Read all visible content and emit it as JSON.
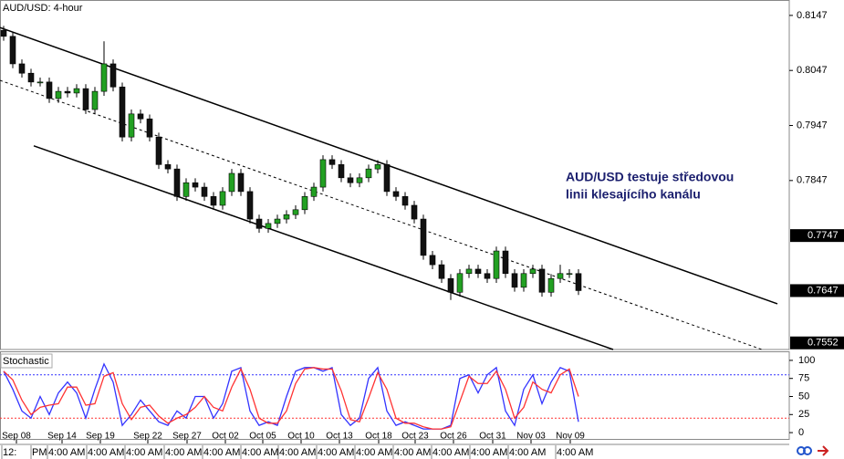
{
  "chart_data": [
    {
      "type": "candlestick",
      "title": "AUD/USD: 4-hour",
      "xlim": [
        -0.4,
        86.1
      ],
      "ylim": [
        0.754,
        0.8175
      ],
      "yticks": [
        0.8147,
        0.8047,
        0.7947,
        0.7847
      ],
      "price_markers": [
        0.7747,
        0.7647,
        0.7552
      ],
      "up_color": "#22a022",
      "down_color": "#111111",
      "candles": {
        "open": [
          0.812,
          0.8109,
          0.8059,
          0.8042,
          0.8026,
          0.8026,
          0.7996,
          0.8009,
          0.8006,
          0.8014,
          0.7976,
          0.8009,
          0.8059,
          0.8017,
          0.7926,
          0.7968,
          0.7959,
          0.7926,
          0.7876,
          0.7868,
          0.7818,
          0.7843,
          0.7835,
          0.7818,
          0.7802,
          0.7827,
          0.786,
          0.7827,
          0.7777,
          0.776,
          0.7769,
          0.7777,
          0.7785,
          0.7794,
          0.7818,
          0.7835,
          0.7885,
          0.7876,
          0.7852,
          0.7843,
          0.7852,
          0.7868,
          0.7876,
          0.7827,
          0.7818,
          0.7802,
          0.7777,
          0.7711,
          0.7694,
          0.7669,
          0.7644,
          0.7678,
          0.7686,
          0.7678,
          0.7669,
          0.7719,
          0.7678,
          0.7653,
          0.7678,
          0.7686,
          0.7644,
          0.7669,
          0.7678,
          0.7678
        ],
        "high": [
          0.8128,
          0.8117,
          0.8067,
          0.805,
          0.8034,
          0.8034,
          0.8017,
          0.8017,
          0.8022,
          0.8022,
          0.8017,
          0.81,
          0.8067,
          0.8025,
          0.7976,
          0.7976,
          0.7967,
          0.7934,
          0.7884,
          0.7876,
          0.7851,
          0.7851,
          0.7843,
          0.7826,
          0.7835,
          0.7868,
          0.7868,
          0.7835,
          0.7785,
          0.7777,
          0.7785,
          0.7793,
          0.7802,
          0.7826,
          0.7843,
          0.7893,
          0.7893,
          0.7884,
          0.786,
          0.786,
          0.7876,
          0.7884,
          0.7884,
          0.7835,
          0.7826,
          0.781,
          0.7785,
          0.7719,
          0.7702,
          0.7677,
          0.7686,
          0.7694,
          0.7694,
          0.7686,
          0.7727,
          0.7727,
          0.7686,
          0.7686,
          0.7694,
          0.7694,
          0.7677,
          0.7694,
          0.7686,
          0.7686
        ],
        "low": [
          0.8101,
          0.8051,
          0.8034,
          0.8018,
          0.8018,
          0.7988,
          0.7988,
          0.7998,
          0.7998,
          0.7968,
          0.7968,
          0.8001,
          0.8009,
          0.7918,
          0.7918,
          0.7951,
          0.7918,
          0.7868,
          0.786,
          0.781,
          0.781,
          0.7827,
          0.781,
          0.7794,
          0.7794,
          0.7819,
          0.7819,
          0.7769,
          0.7752,
          0.7752,
          0.7761,
          0.7769,
          0.7777,
          0.7786,
          0.781,
          0.7827,
          0.7868,
          0.7844,
          0.7835,
          0.7835,
          0.7844,
          0.786,
          0.7819,
          0.781,
          0.7794,
          0.7769,
          0.7703,
          0.7686,
          0.7661,
          0.763,
          0.7636,
          0.767,
          0.767,
          0.7661,
          0.7661,
          0.767,
          0.7645,
          0.7645,
          0.767,
          0.7636,
          0.7636,
          0.7661,
          0.767,
          0.7639
        ],
        "close": [
          0.8109,
          0.8059,
          0.8042,
          0.8026,
          0.8026,
          0.7996,
          0.8009,
          0.8006,
          0.8014,
          0.7976,
          0.8009,
          0.8059,
          0.8017,
          0.7926,
          0.7968,
          0.7959,
          0.7926,
          0.7876,
          0.7868,
          0.7818,
          0.7843,
          0.7835,
          0.7818,
          0.7802,
          0.7827,
          0.786,
          0.7827,
          0.7777,
          0.776,
          0.7769,
          0.7777,
          0.7785,
          0.7794,
          0.7818,
          0.7835,
          0.7885,
          0.7876,
          0.7852,
          0.7843,
          0.7852,
          0.7868,
          0.7876,
          0.7827,
          0.7818,
          0.7802,
          0.7777,
          0.7711,
          0.7694,
          0.7669,
          0.7644,
          0.7678,
          0.7686,
          0.7678,
          0.7669,
          0.7719,
          0.7678,
          0.7653,
          0.7678,
          0.7686,
          0.7644,
          0.7669,
          0.7678,
          0.7678,
          0.7647
        ]
      },
      "trend_lines": [
        {
          "x": [
            -0.4,
            84.8
          ],
          "y": [
            0.8125,
            0.7623
          ],
          "style": "solid"
        },
        {
          "x": [
            3.3,
            66.8
          ],
          "y": [
            0.791,
            0.754
          ],
          "style": "solid"
        },
        {
          "x": [
            -0.4,
            83.1
          ],
          "y": [
            0.8029,
            0.754
          ],
          "style": "dashed"
        }
      ],
      "annotation": [
        "AUD/USD testuje středovou",
        "linii klesajícího kanálu"
      ]
    },
    {
      "type": "line",
      "title": "Stochastic",
      "xlim": [
        -0.4,
        86.1
      ],
      "ylim": [
        -10,
        110
      ],
      "yticks": [
        100,
        75,
        50,
        25,
        0
      ],
      "levels": [
        {
          "value": 80,
          "color": "#3030ff"
        },
        {
          "value": 20,
          "color": "#ff3030"
        }
      ],
      "series": [
        {
          "color": "#3333ff",
          "values": [
            85,
            60,
            30,
            20,
            50,
            25,
            55,
            70,
            55,
            20,
            60,
            95,
            70,
            10,
            25,
            45,
            30,
            15,
            10,
            30,
            20,
            50,
            50,
            20,
            40,
            85,
            90,
            30,
            10,
            15,
            10,
            50,
            85,
            90,
            90,
            85,
            90,
            25,
            10,
            20,
            75,
            90,
            30,
            10,
            15,
            10,
            5,
            5,
            5,
            10,
            75,
            80,
            55,
            80,
            90,
            30,
            10,
            60,
            80,
            40,
            70,
            90,
            85,
            15
          ]
        },
        {
          "color": "#ff3333",
          "values": [
            85,
            73,
            45,
            25,
            35,
            38,
            40,
            63,
            63,
            38,
            40,
            78,
            83,
            40,
            18,
            35,
            38,
            23,
            13,
            20,
            25,
            35,
            50,
            35,
            30,
            63,
            88,
            60,
            20,
            13,
            13,
            30,
            68,
            88,
            90,
            88,
            88,
            58,
            18,
            15,
            48,
            83,
            60,
            20,
            13,
            13,
            8,
            5,
            5,
            8,
            43,
            78,
            68,
            68,
            85,
            60,
            20,
            35,
            70,
            60,
            55,
            80,
            88,
            50
          ]
        }
      ],
      "xticks": [
        {
          "value": 1.4,
          "label": "Sep 08"
        },
        {
          "value": 6.4,
          "label": "Sep 14"
        },
        {
          "value": 10.6,
          "label": "Sep 19"
        },
        {
          "value": 15.8,
          "label": "Sep 22"
        },
        {
          "value": 20.1,
          "label": "Sep 27"
        },
        {
          "value": 24.3,
          "label": "Oct 02"
        },
        {
          "value": 28.4,
          "label": "Oct 05"
        },
        {
          "value": 32.6,
          "label": "Oct 10"
        },
        {
          "value": 36.8,
          "label": "Oct 13"
        },
        {
          "value": 41.1,
          "label": "Oct 18"
        },
        {
          "value": 45.1,
          "label": "Oct 23"
        },
        {
          "value": 49.3,
          "label": "Oct 26"
        },
        {
          "value": 53.6,
          "label": "Oct 31"
        },
        {
          "value": 57.8,
          "label": "Nov 03"
        },
        {
          "value": 62.1,
          "label": "Nov 09"
        }
      ],
      "time_ticks": [
        {
          "value": -0.2,
          "label": "12:"
        },
        {
          "value": 3.0,
          "label": "PM"
        },
        {
          "value": 4.8,
          "label": "4:00 AM"
        },
        {
          "value": 9.1,
          "label": "4:00 AM"
        },
        {
          "value": 13.3,
          "label": "4:00 AM"
        },
        {
          "value": 17.6,
          "label": "4:00 AM"
        },
        {
          "value": 21.8,
          "label": "4:00 AM"
        },
        {
          "value": 26.0,
          "label": "4:00 AM"
        },
        {
          "value": 30.1,
          "label": "4:00 AM"
        },
        {
          "value": 34.3,
          "label": "4:00 AM"
        },
        {
          "value": 38.5,
          "label": "4:00 AM"
        },
        {
          "value": 42.7,
          "label": "4:00 AM"
        },
        {
          "value": 46.9,
          "label": "4:00 AM"
        },
        {
          "value": 51.1,
          "label": "4:00 AM"
        },
        {
          "value": 55.3,
          "label": "4:00 AM"
        },
        {
          "value": 60.5,
          "label": "4:00 AM"
        }
      ]
    }
  ]
}
